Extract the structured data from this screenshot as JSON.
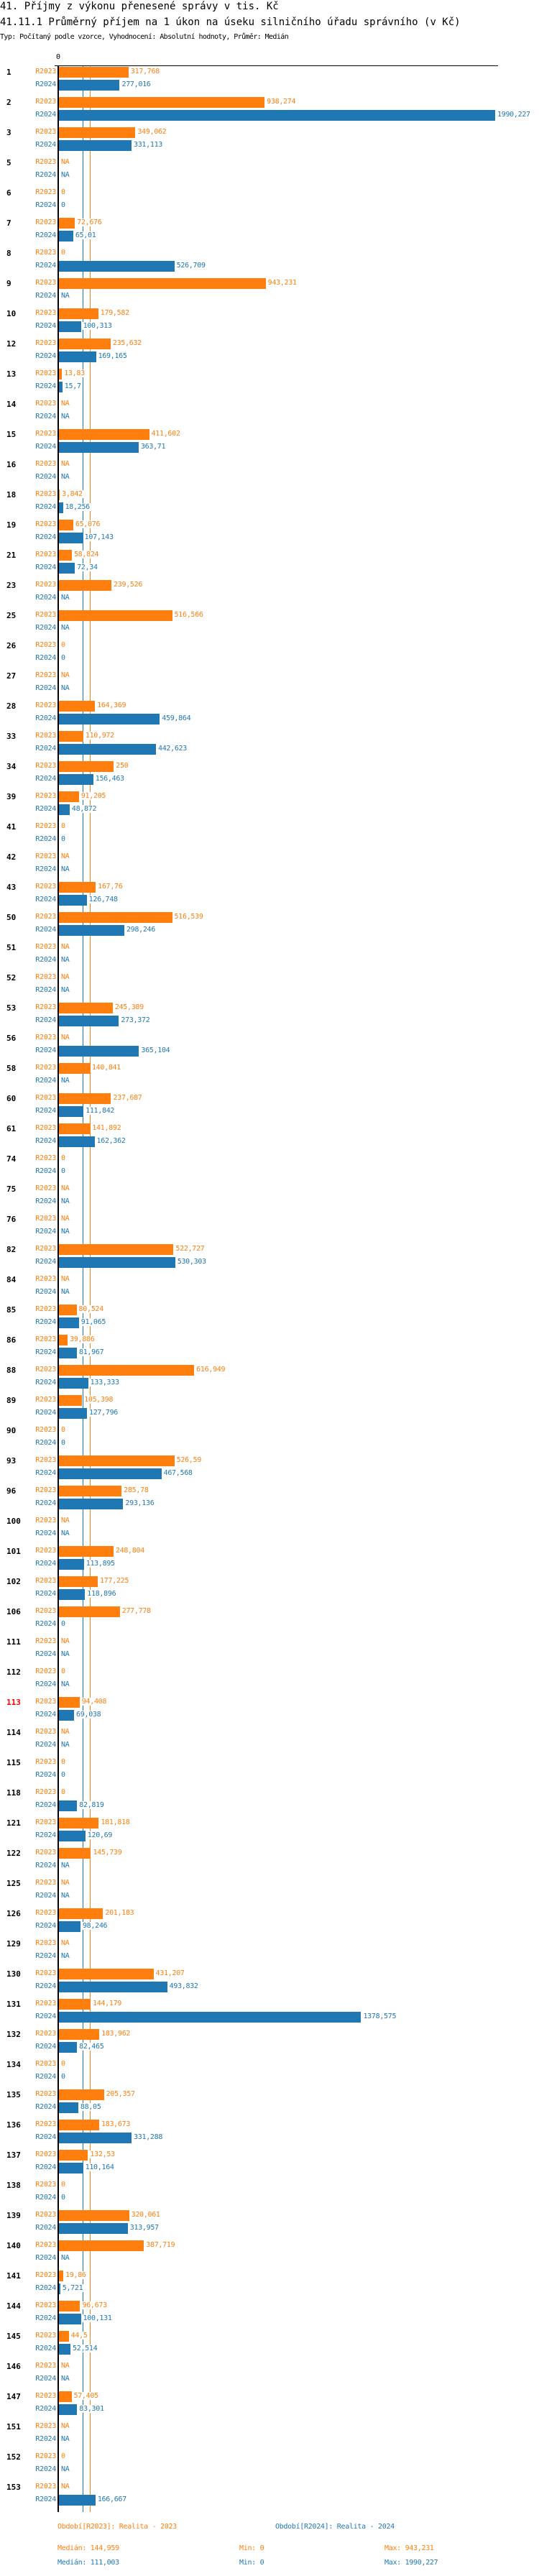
{
  "header": {
    "title": "41. Příjmy z výkonu přenesené správy v tis. Kč",
    "subtitle": "41.11.1 Průměrný příjem na 1 úkon na úseku silničního úřadu správního (v Kč)",
    "meta": "Typ: Počítaný podle vzorce, Vyhodnocení: Absolutní hodnoty, Průměr: Medián"
  },
  "chart_data": {
    "type": "bar",
    "orientation": "horizontal",
    "title": "41.11.1 Průměrný příjem na 1 úkon na úseku silničního úřadu správního (v Kč)",
    "x_tick_labels": [
      "0"
    ],
    "xlim": [
      0,
      1990.227
    ],
    "highlight_category": "113",
    "colors": {
      "R2023": "#ff7f0e",
      "R2024": "#1f77b4",
      "highlight": "#ff0000"
    },
    "series_names": [
      "R2023",
      "R2024"
    ],
    "categories": [
      "1",
      "2",
      "3",
      "5",
      "6",
      "7",
      "8",
      "9",
      "10",
      "12",
      "13",
      "14",
      "15",
      "16",
      "18",
      "19",
      "21",
      "23",
      "25",
      "26",
      "27",
      "28",
      "33",
      "34",
      "39",
      "41",
      "42",
      "43",
      "50",
      "51",
      "52",
      "53",
      "56",
      "58",
      "60",
      "61",
      "74",
      "75",
      "76",
      "82",
      "84",
      "85",
      "86",
      "88",
      "89",
      "90",
      "93",
      "96",
      "100",
      "101",
      "102",
      "106",
      "111",
      "112",
      "113",
      "114",
      "115",
      "118",
      "121",
      "122",
      "125",
      "126",
      "129",
      "130",
      "131",
      "132",
      "134",
      "135",
      "136",
      "137",
      "138",
      "139",
      "140",
      "141",
      "144",
      "145",
      "146",
      "147",
      "151",
      "152",
      "153"
    ],
    "series": [
      {
        "name": "R2023",
        "values": [
          317.768,
          938.274,
          349.062,
          null,
          0,
          72.676,
          0,
          943.231,
          179.582,
          235.632,
          13.83,
          null,
          411.602,
          null,
          3.842,
          65.076,
          58.824,
          239.526,
          516.566,
          0,
          null,
          164.369,
          110.972,
          250,
          91.205,
          0,
          null,
          167.76,
          516.539,
          null,
          null,
          245.389,
          null,
          140.841,
          237.687,
          141.892,
          0,
          null,
          null,
          522.727,
          null,
          80.524,
          39.886,
          616.949,
          105.398,
          0,
          526.59,
          285.78,
          null,
          248.804,
          177.225,
          277.778,
          null,
          0,
          94.408,
          null,
          0,
          0,
          181.818,
          145.739,
          null,
          201.183,
          null,
          431.207,
          144.179,
          183.962,
          0,
          205.357,
          183.673,
          132.53,
          0,
          320.061,
          387.719,
          19.86,
          96.673,
          44.5,
          null,
          57.405,
          null,
          0,
          null
        ],
        "labels": [
          "317,768",
          "938,274",
          "349,062",
          "NA",
          "0",
          "72,676",
          "0",
          "943,231",
          "179,582",
          "235,632",
          "13,83",
          "NA",
          "411,602",
          "NA",
          "3,842",
          "65,076",
          "58,824",
          "239,526",
          "516,566",
          "0",
          "NA",
          "164,369",
          "110,972",
          "250",
          "91,205",
          "0",
          "NA",
          "167,76",
          "516,539",
          "NA",
          "NA",
          "245,389",
          "NA",
          "140,841",
          "237,687",
          "141,892",
          "0",
          "NA",
          "NA",
          "522,727",
          "NA",
          "80,524",
          "39,886",
          "616,949",
          "105,398",
          "0",
          "526,59",
          "285,78",
          "NA",
          "248,804",
          "177,225",
          "277,778",
          "NA",
          "0",
          "94,408",
          "NA",
          "0",
          "0",
          "181,818",
          "145,739",
          "NA",
          "201,183",
          "NA",
          "431,207",
          "144,179",
          "183,962",
          "0",
          "205,357",
          "183,673",
          "132,53",
          "0",
          "320,061",
          "387,719",
          "19,86",
          "96,673",
          "44,5",
          "NA",
          "57,405",
          "NA",
          "0",
          "NA"
        ]
      },
      {
        "name": "R2024",
        "values": [
          277.016,
          1990.227,
          331.113,
          null,
          0,
          65.01,
          526.709,
          null,
          100.313,
          169.165,
          15.7,
          null,
          363.71,
          null,
          18.256,
          107.143,
          72.34,
          null,
          null,
          0,
          null,
          459.864,
          442.623,
          156.463,
          48.872,
          0,
          null,
          126.748,
          298.246,
          null,
          null,
          273.372,
          365.104,
          null,
          111.842,
          162.362,
          0,
          null,
          null,
          530.303,
          null,
          91.065,
          81.967,
          133.333,
          127.796,
          0,
          467.568,
          293.136,
          null,
          113.895,
          118.896,
          0,
          null,
          null,
          69.038,
          null,
          0,
          82.819,
          120.69,
          null,
          null,
          98.246,
          null,
          493.832,
          1378.575,
          82.465,
          0,
          88.05,
          331.288,
          110.164,
          0,
          313.957,
          null,
          5.721,
          100.131,
          52.514,
          null,
          83.301,
          null,
          null,
          166.667
        ],
        "labels": [
          "277,016",
          "1990,227",
          "331,113",
          "NA",
          "0",
          "65,01",
          "526,709",
          "NA",
          "100,313",
          "169,165",
          "15,7",
          "NA",
          "363,71",
          "NA",
          "18,256",
          "107,143",
          "72,34",
          "NA",
          "NA",
          "0",
          "NA",
          "459,864",
          "442,623",
          "156,463",
          "48,872",
          "0",
          "NA",
          "126,748",
          "298,246",
          "NA",
          "NA",
          "273,372",
          "365,104",
          "NA",
          "111,842",
          "162,362",
          "0",
          "NA",
          "NA",
          "530,303",
          "NA",
          "91,065",
          "81,967",
          "133,333",
          "127,796",
          "0",
          "467,568",
          "293,136",
          "NA",
          "113,895",
          "118,896",
          "0",
          "NA",
          "NA",
          "69,038",
          "NA",
          "0",
          "82,819",
          "120,69",
          "NA",
          "NA",
          "98,246",
          "NA",
          "493,832",
          "1378,575",
          "82,465",
          "0",
          "88,05",
          "331,288",
          "110,164",
          "0",
          "313,957",
          "NA",
          "5,721",
          "100,131",
          "52,514",
          "NA",
          "83,301",
          "NA",
          "NA",
          "166,667"
        ]
      }
    ],
    "medians": {
      "R2023": 144.959,
      "R2024": 111.003
    },
    "legend": {
      "placement": "bottom",
      "r2023": {
        "period": "Období[R2023]: Realita - 2023",
        "median": "Medián: 144,959",
        "min": "Min: 0",
        "max": "Max: 943,231"
      },
      "r2024": {
        "period": "Období[R2024]: Realita - 2024",
        "median": "Medián: 111,003",
        "min": "Min: 0",
        "max": "Max: 1990,227"
      }
    }
  }
}
